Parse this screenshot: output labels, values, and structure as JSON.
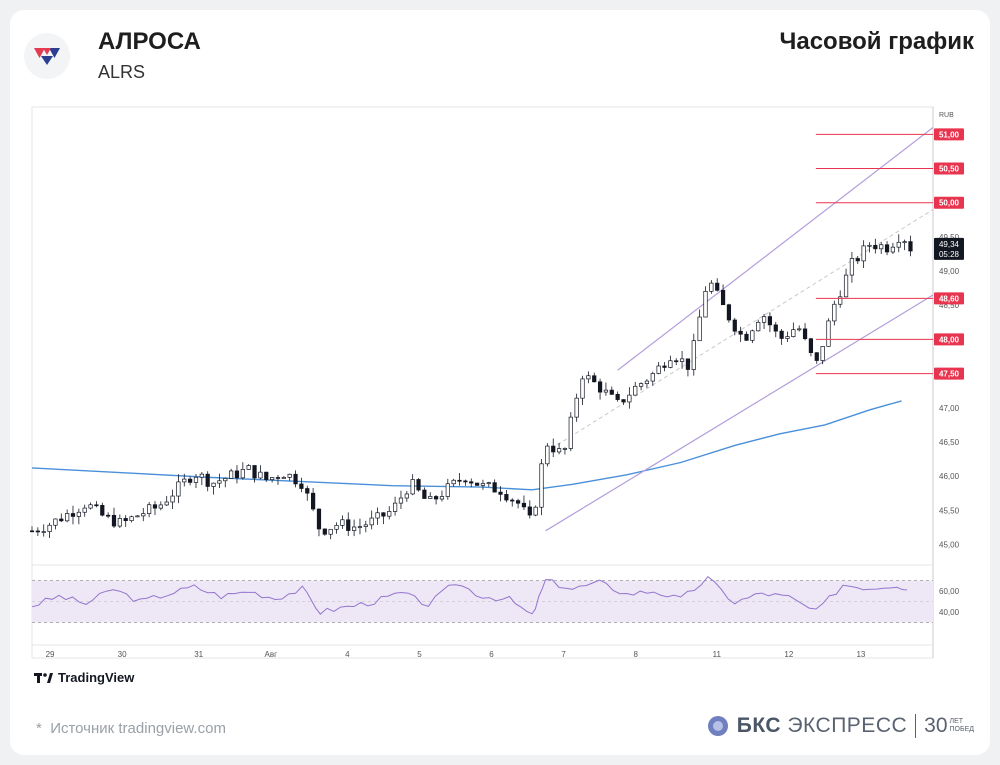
{
  "header": {
    "name": "АЛРОСА",
    "ticker": "ALRS",
    "timeframe": "Часовой график"
  },
  "footer": {
    "tv_brand": "TradingView",
    "source": "Источник tradingview.com",
    "source_mark": "*",
    "bks_brand_bold": "БКС",
    "bks_brand_rest": "ЭКСПРЕСС",
    "years_num": "30",
    "years_top": "ЛЕТ",
    "years_bottom": "ПОБЕД"
  },
  "colors": {
    "up": "#ffffff",
    "down": "#131722",
    "ma": "#4a90d9",
    "channel": "#b39ddb",
    "level": "#e8344e",
    "rsi": "#9575cd",
    "rsi_band": "#ede7f6",
    "axis_text": "#555555"
  },
  "chart_data": {
    "type": "candlestick",
    "currency": "RUB",
    "ylim": [
      44.7,
      51.4
    ],
    "price_ticks": [
      "45,00",
      "45,50",
      "46,00",
      "46,50",
      "47,00",
      "47,50",
      "48,00",
      "48,50",
      "49,00",
      "49,50",
      "50,00",
      "50,50",
      "51,00"
    ],
    "x_labels": [
      "29",
      "30",
      "31",
      "Авг",
      "4",
      "5",
      "6",
      "7",
      "8",
      "11",
      "12",
      "13"
    ],
    "levels": [
      {
        "price": 51.0,
        "label": "51,00"
      },
      {
        "price": 50.5,
        "label": "50,50"
      },
      {
        "price": 50.0,
        "label": "50,00"
      },
      {
        "price": 48.6,
        "label": "48,60"
      },
      {
        "price": 48.0,
        "label": "48,00"
      },
      {
        "price": 47.5,
        "label": "47,50"
      }
    ],
    "last_price": {
      "value": 49.34,
      "label": "49,34",
      "timer": "05:28"
    },
    "channel": {
      "upper": [
        [
          0.65,
          47.55
        ],
        [
          1.0,
          51.1
        ]
      ],
      "lower": [
        [
          0.57,
          45.2
        ],
        [
          1.0,
          48.65
        ]
      ],
      "mid": [
        [
          0.57,
          46.35
        ],
        [
          1.0,
          49.9
        ]
      ]
    },
    "ma": [
      [
        0.0,
        46.12
      ],
      [
        0.1,
        46.05
      ],
      [
        0.2,
        45.98
      ],
      [
        0.3,
        45.92
      ],
      [
        0.4,
        45.86
      ],
      [
        0.5,
        45.84
      ],
      [
        0.555,
        45.8
      ],
      [
        0.6,
        45.88
      ],
      [
        0.66,
        46.02
      ],
      [
        0.72,
        46.2
      ],
      [
        0.78,
        46.45
      ],
      [
        0.83,
        46.62
      ],
      [
        0.88,
        46.75
      ],
      [
        0.93,
        46.97
      ],
      [
        0.965,
        47.1
      ]
    ],
    "candles_points": [
      [
        0.0,
        45.2
      ],
      [
        0.02,
        45.3
      ],
      [
        0.04,
        45.45
      ],
      [
        0.06,
        45.6
      ],
      [
        0.08,
        45.4
      ],
      [
        0.1,
        45.3
      ],
      [
        0.12,
        45.45
      ],
      [
        0.14,
        45.55
      ],
      [
        0.16,
        45.8
      ],
      [
        0.18,
        46.05
      ],
      [
        0.2,
        45.9
      ],
      [
        0.22,
        46.0
      ],
      [
        0.24,
        46.1
      ],
      [
        0.26,
        45.95
      ],
      [
        0.28,
        46.05
      ],
      [
        0.3,
        45.9
      ],
      [
        0.32,
        45.2
      ],
      [
        0.34,
        45.3
      ],
      [
        0.36,
        45.25
      ],
      [
        0.38,
        45.35
      ],
      [
        0.4,
        45.5
      ],
      [
        0.42,
        45.9
      ],
      [
        0.44,
        45.6
      ],
      [
        0.46,
        45.8
      ],
      [
        0.48,
        46.0
      ],
      [
        0.5,
        45.85
      ],
      [
        0.52,
        45.8
      ],
      [
        0.54,
        45.6
      ],
      [
        0.555,
        45.3
      ],
      [
        0.57,
        46.5
      ],
      [
        0.59,
        46.3
      ],
      [
        0.61,
        47.5
      ],
      [
        0.63,
        47.3
      ],
      [
        0.65,
        47.05
      ],
      [
        0.67,
        47.3
      ],
      [
        0.69,
        47.5
      ],
      [
        0.71,
        47.8
      ],
      [
        0.73,
        47.6
      ],
      [
        0.75,
        48.9
      ],
      [
        0.77,
        48.4
      ],
      [
        0.79,
        48.0
      ],
      [
        0.81,
        48.4
      ],
      [
        0.83,
        48.0
      ],
      [
        0.85,
        48.2
      ],
      [
        0.87,
        47.6
      ],
      [
        0.89,
        48.5
      ],
      [
        0.91,
        49.1
      ],
      [
        0.93,
        49.4
      ],
      [
        0.95,
        49.35
      ],
      [
        0.965,
        49.55
      ],
      [
        0.975,
        49.34
      ]
    ],
    "rsi": {
      "band": [
        30,
        70
      ],
      "mid": 50,
      "ticks": [
        "60,00",
        "40,00"
      ],
      "points": [
        [
          0.0,
          46
        ],
        [
          0.03,
          55
        ],
        [
          0.06,
          48
        ],
        [
          0.09,
          62
        ],
        [
          0.12,
          50
        ],
        [
          0.15,
          57
        ],
        [
          0.18,
          64
        ],
        [
          0.21,
          55
        ],
        [
          0.24,
          60
        ],
        [
          0.27,
          53
        ],
        [
          0.3,
          62
        ],
        [
          0.32,
          40
        ],
        [
          0.35,
          45
        ],
        [
          0.38,
          50
        ],
        [
          0.41,
          58
        ],
        [
          0.44,
          47
        ],
        [
          0.47,
          68
        ],
        [
          0.5,
          55
        ],
        [
          0.53,
          52
        ],
        [
          0.555,
          36
        ],
        [
          0.57,
          70
        ],
        [
          0.6,
          62
        ],
        [
          0.63,
          68
        ],
        [
          0.66,
          57
        ],
        [
          0.69,
          60
        ],
        [
          0.72,
          52
        ],
        [
          0.75,
          72
        ],
        [
          0.78,
          49
        ],
        [
          0.81,
          58
        ],
        [
          0.84,
          54
        ],
        [
          0.87,
          40
        ],
        [
          0.9,
          66
        ],
        [
          0.93,
          63
        ],
        [
          0.96,
          66
        ],
        [
          0.975,
          60
        ]
      ]
    }
  }
}
